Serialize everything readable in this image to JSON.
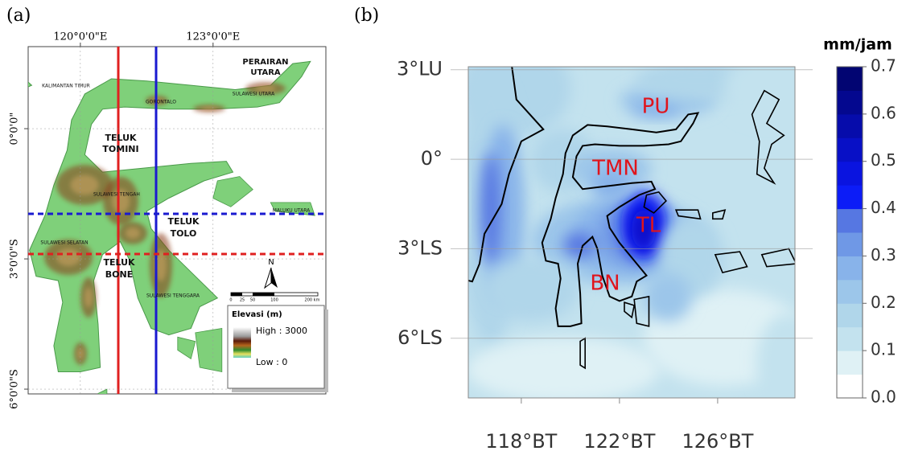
{
  "panel_a": {
    "label": "(a)",
    "lonlim": [
      118.82,
      125.55
    ],
    "latlim": [
      1.89,
      -6.11
    ],
    "lon_ticks": [
      {
        "value": 120,
        "label": "120°0'0\"E"
      },
      {
        "value": 123,
        "label": "123°0'0\"E"
      }
    ],
    "lat_ticks": [
      {
        "value": 0,
        "label": "0°0'0\""
      },
      {
        "value": -3,
        "label": "3°0'0\"S"
      },
      {
        "value": -6,
        "label": "6°0'0\"S"
      }
    ],
    "place_labels": [
      "PERAIRAN",
      "UTARA",
      "KALIMANTAN TIMUR",
      "GORONTALO",
      "SULAWESI UTARA",
      "TELUK",
      "TOMINI",
      "SULAWESI TENGAH",
      "MALUKU UTARA",
      "TELUK",
      "TOLO",
      "SULAWESI SELATAN",
      "TELUK",
      "BONE",
      "SULAWESI TENGGARA"
    ],
    "north": "N",
    "scale_labels": [
      "0",
      "25",
      "50",
      "100",
      "200 km"
    ],
    "legend": {
      "title": "Elevasi (m)",
      "high": "High : 3000",
      "low": "Low : 0"
    }
  },
  "panel_b": {
    "label": "(b)",
    "lonlim": [
      115.84,
      129.15
    ],
    "latlim": [
      3.1,
      -8.0
    ],
    "lon_ticks": [
      {
        "value": 118,
        "label": "118°BT"
      },
      {
        "value": 122,
        "label": "122°BT"
      },
      {
        "value": 126,
        "label": "126°BT"
      }
    ],
    "lat_ticks": [
      {
        "value": 3,
        "label": "3°LU"
      },
      {
        "value": 0,
        "label": "0°"
      },
      {
        "value": -3,
        "label": "3°LS"
      },
      {
        "value": -6,
        "label": "6°LS"
      }
    ],
    "region_labels": [
      "PU",
      "TMN",
      "TL",
      "BN"
    ],
    "colorbar": {
      "title": "mm/jam",
      "lim": [
        0,
        0.7
      ],
      "ticks": [
        {
          "value": 0,
          "label": "0.0"
        },
        0.1,
        0.2,
        0.3,
        0.4,
        0.5,
        0.6,
        0.7
      ],
      "colors": [
        "#ffffff",
        "#dff1f5",
        "#c3e2ee",
        "#b0d6ea",
        "#9cc6ea",
        "#88b3ea",
        "#6f98e6",
        "#5677e2",
        "#0c1cf7",
        "#0a14e0",
        "#0810c6",
        "#060cab",
        "#04088f",
        "#020572"
      ]
    }
  }
}
